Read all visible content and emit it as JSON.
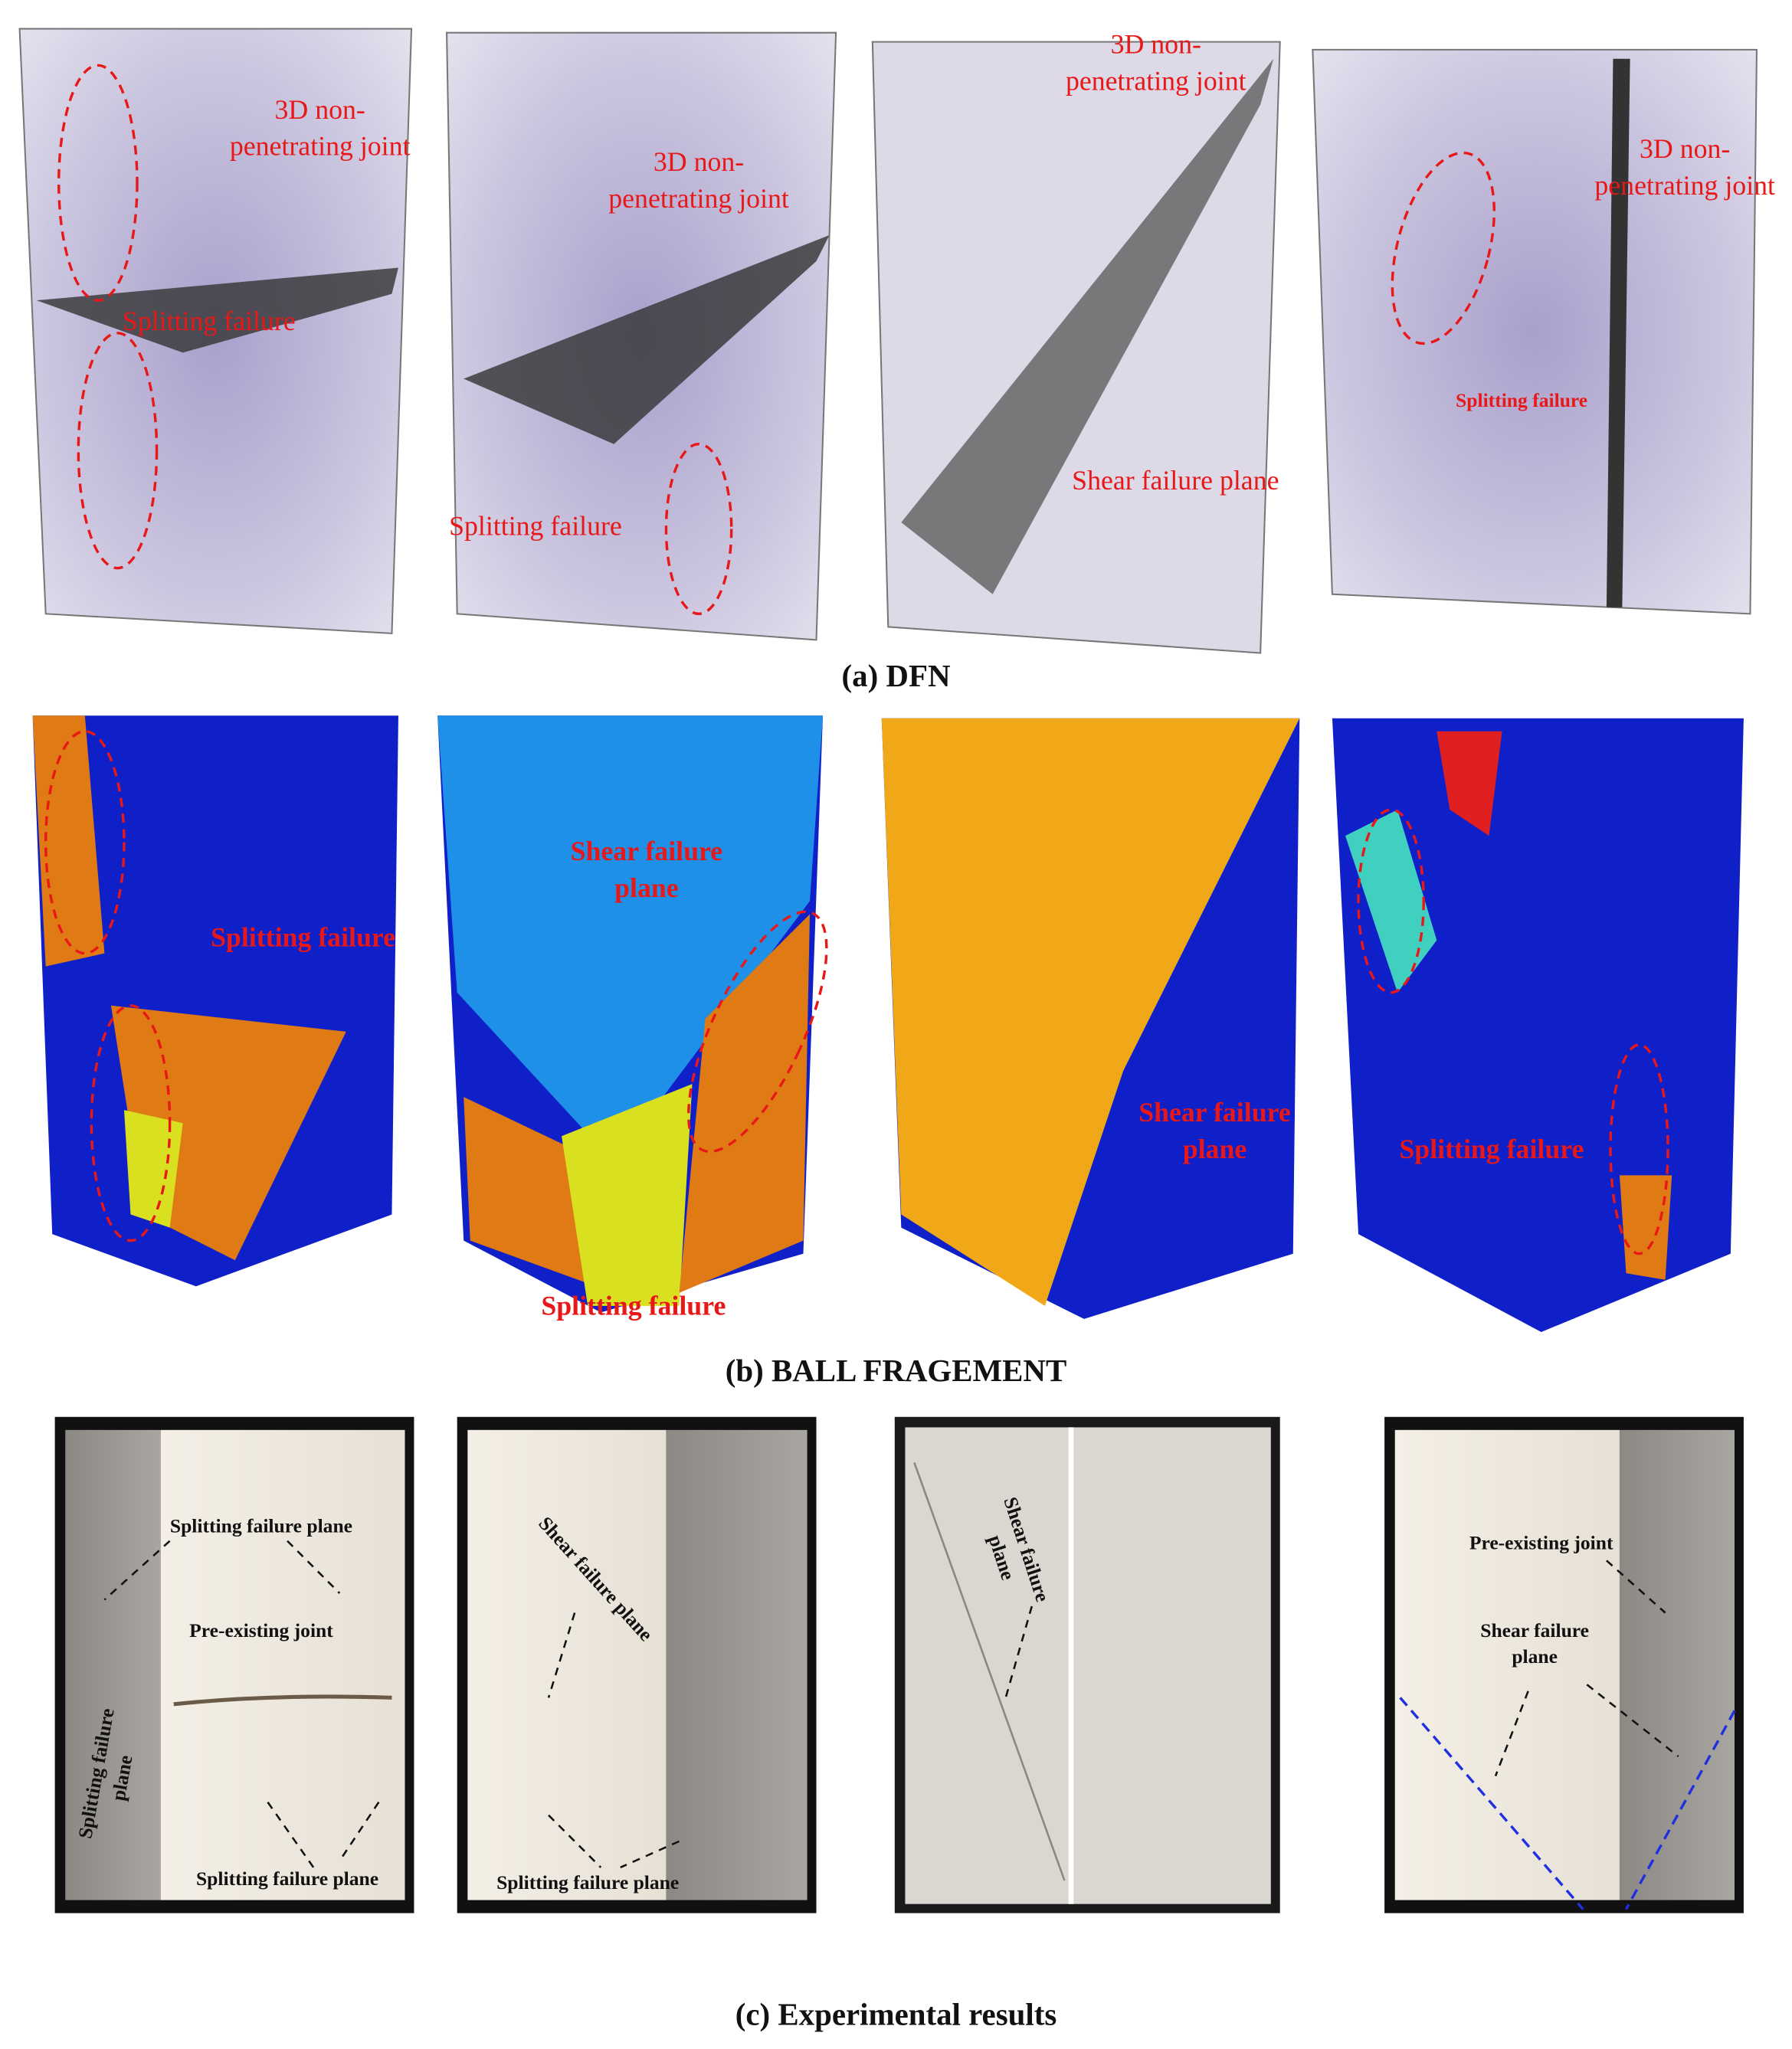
{
  "panels": [
    {
      "caption": "(a) DFN",
      "images": [
        {
          "labels": [
            {
              "lines": [
                "3D non-",
                "penetrating joint"
              ]
            },
            {
              "lines": [
                "Splitting failure"
              ]
            }
          ]
        },
        {
          "labels": [
            {
              "lines": [
                "3D non-",
                "penetrating joint"
              ]
            },
            {
              "lines": [
                "Splitting failure"
              ]
            }
          ]
        },
        {
          "labels": [
            {
              "lines": [
                "3D non-",
                "penetrating joint"
              ]
            },
            {
              "lines": [
                "Shear failure plane"
              ]
            }
          ]
        },
        {
          "labels": [
            {
              "lines": [
                "3D non-",
                "penetrating joint"
              ]
            },
            {
              "lines": [
                "Splitting failure"
              ]
            }
          ]
        }
      ]
    },
    {
      "caption": "(b) BALL FRAGEMENT",
      "images": [
        {
          "labels": [
            {
              "lines": [
                "Splitting failure"
              ]
            }
          ]
        },
        {
          "labels": [
            {
              "lines": [
                "Shear failure",
                "plane"
              ]
            },
            {
              "lines": [
                "Splitting failure"
              ]
            }
          ]
        },
        {
          "labels": [
            {
              "lines": [
                "Shear failure",
                "plane"
              ]
            }
          ]
        },
        {
          "labels": [
            {
              "lines": [
                "Splitting failure"
              ]
            }
          ]
        }
      ]
    },
    {
      "caption": "(c) Experimental results",
      "images": [
        {
          "labels": [
            {
              "lines": [
                "Splitting failure plane"
              ]
            },
            {
              "lines": [
                "Pre-existing joint"
              ]
            },
            {
              "lines": [
                "Splitting failure plane"
              ]
            },
            {
              "lines": [
                "Splitting failure",
                "plane"
              ]
            }
          ]
        },
        {
          "labels": [
            {
              "lines": [
                "Shear failure plane"
              ]
            },
            {
              "lines": [
                "Splitting failure plane"
              ]
            }
          ]
        },
        {
          "labels": [
            {
              "lines": [
                "Shear failure",
                "plane"
              ]
            }
          ]
        },
        {
          "labels": [
            {
              "lines": [
                "Pre-existing joint"
              ]
            },
            {
              "lines": [
                "Shear failure",
                "plane"
              ]
            }
          ]
        }
      ]
    }
  ]
}
